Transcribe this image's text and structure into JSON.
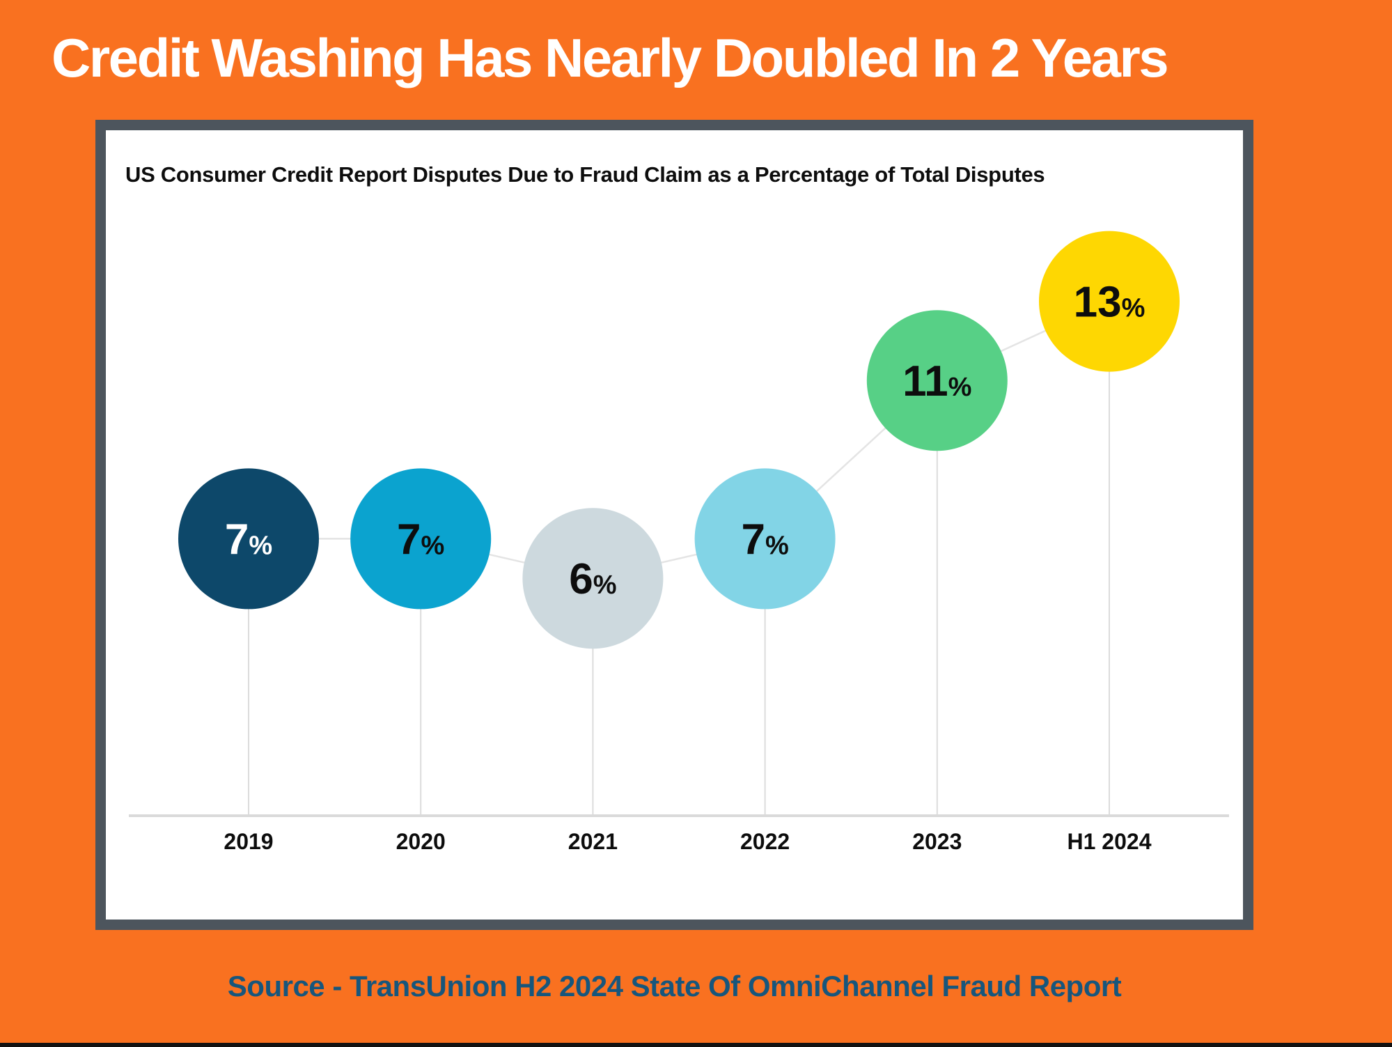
{
  "page": {
    "title": "Credit Washing Has Nearly Doubled In 2 Years",
    "source": "Source - TransUnion H2 2024 State Of OmniChannel Fraud Report",
    "background_color": "#f97120",
    "title_color": "#ffffff",
    "source_color": "#17567c",
    "bottom_bar_color": "#121212"
  },
  "panel": {
    "subtitle": "US Consumer Credit Report Disputes Due to Fraud Claim as a Percentage of Total Disputes",
    "border_color": "#4d555d",
    "background_color": "#ffffff"
  },
  "chart_data": {
    "type": "scatter",
    "title": "US Consumer Credit Report Disputes Due to Fraud Claim as a Percentage of Total Disputes",
    "categories": [
      "2019",
      "2020",
      "2021",
      "2022",
      "2023",
      "H1 2024"
    ],
    "values": [
      7,
      7,
      6,
      7,
      11,
      13
    ],
    "labels": [
      "7%",
      "7%",
      "6%",
      "7%",
      "11%",
      "13%"
    ],
    "xlabel": "",
    "ylabel": "",
    "ylim": [
      0,
      17
    ],
    "grid": "off",
    "legend": "none",
    "point_colors": [
      "#0d486a",
      "#0ba3cf",
      "#cdd9de",
      "#82d4e6",
      "#57d086",
      "#fed702"
    ],
    "label_colors": [
      "#ffffff",
      "#0d0d0d",
      "#0d0d0d",
      "#0d0d0d",
      "#0d0d0d",
      "#0d0d0d"
    ],
    "tick_label_color": "#0d0d0d",
    "connector_color": "#e4e4e4",
    "drop_line_color": "#dcdcdc",
    "axis_line_color": "#dadada"
  }
}
